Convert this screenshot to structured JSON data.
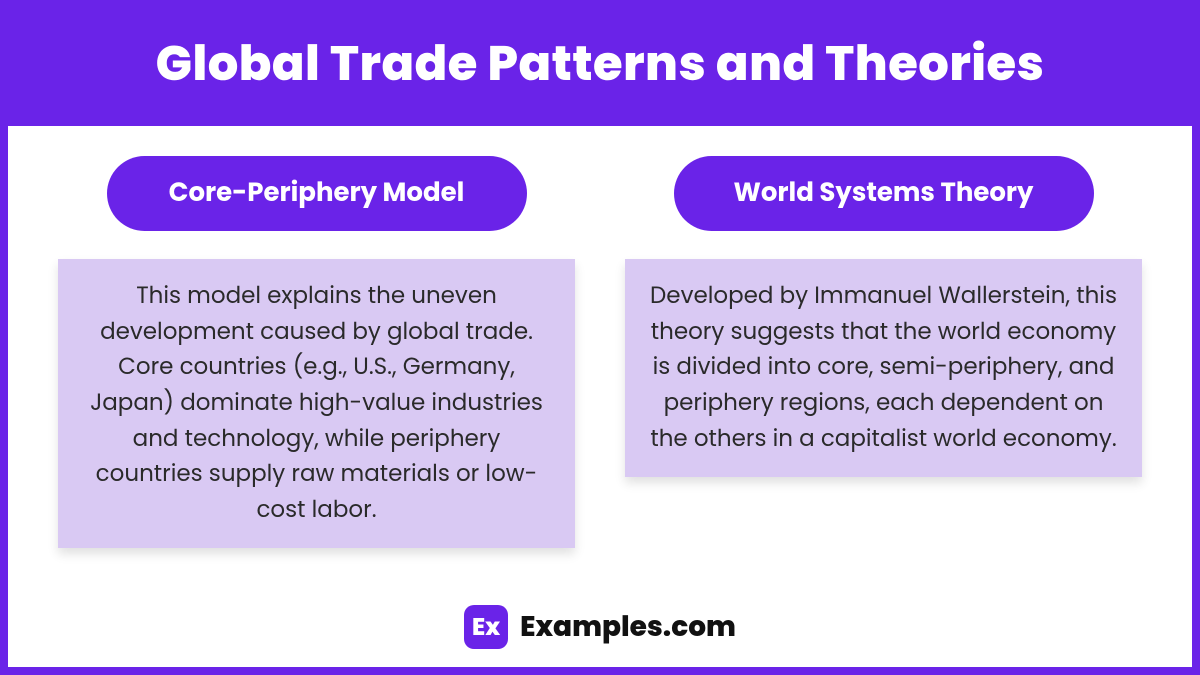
{
  "colors": {
    "primary": "#6a23e8",
    "desc_bg": "#d9c9f3",
    "page_bg": "#ffffff",
    "text_dark": "#2a2a2a",
    "footer_text": "#111111"
  },
  "header": {
    "title": "Global Trade Patterns and Theories"
  },
  "columns": [
    {
      "title": "Core-Periphery Model",
      "description": "This model explains the uneven development caused by global trade. Core countries (e.g., U.S., Germany, Japan) dominate high-value industries and technology, while periphery countries supply raw materials or low-cost labor."
    },
    {
      "title": "World Systems Theory",
      "description": "Developed by Immanuel Wallerstein, this theory suggests that the world economy is divided into core, semi-periphery, and periphery regions, each dependent on the others in a capitalist world economy."
    }
  ],
  "footer": {
    "badge_text": "Ex",
    "brand": "Examples.com"
  }
}
